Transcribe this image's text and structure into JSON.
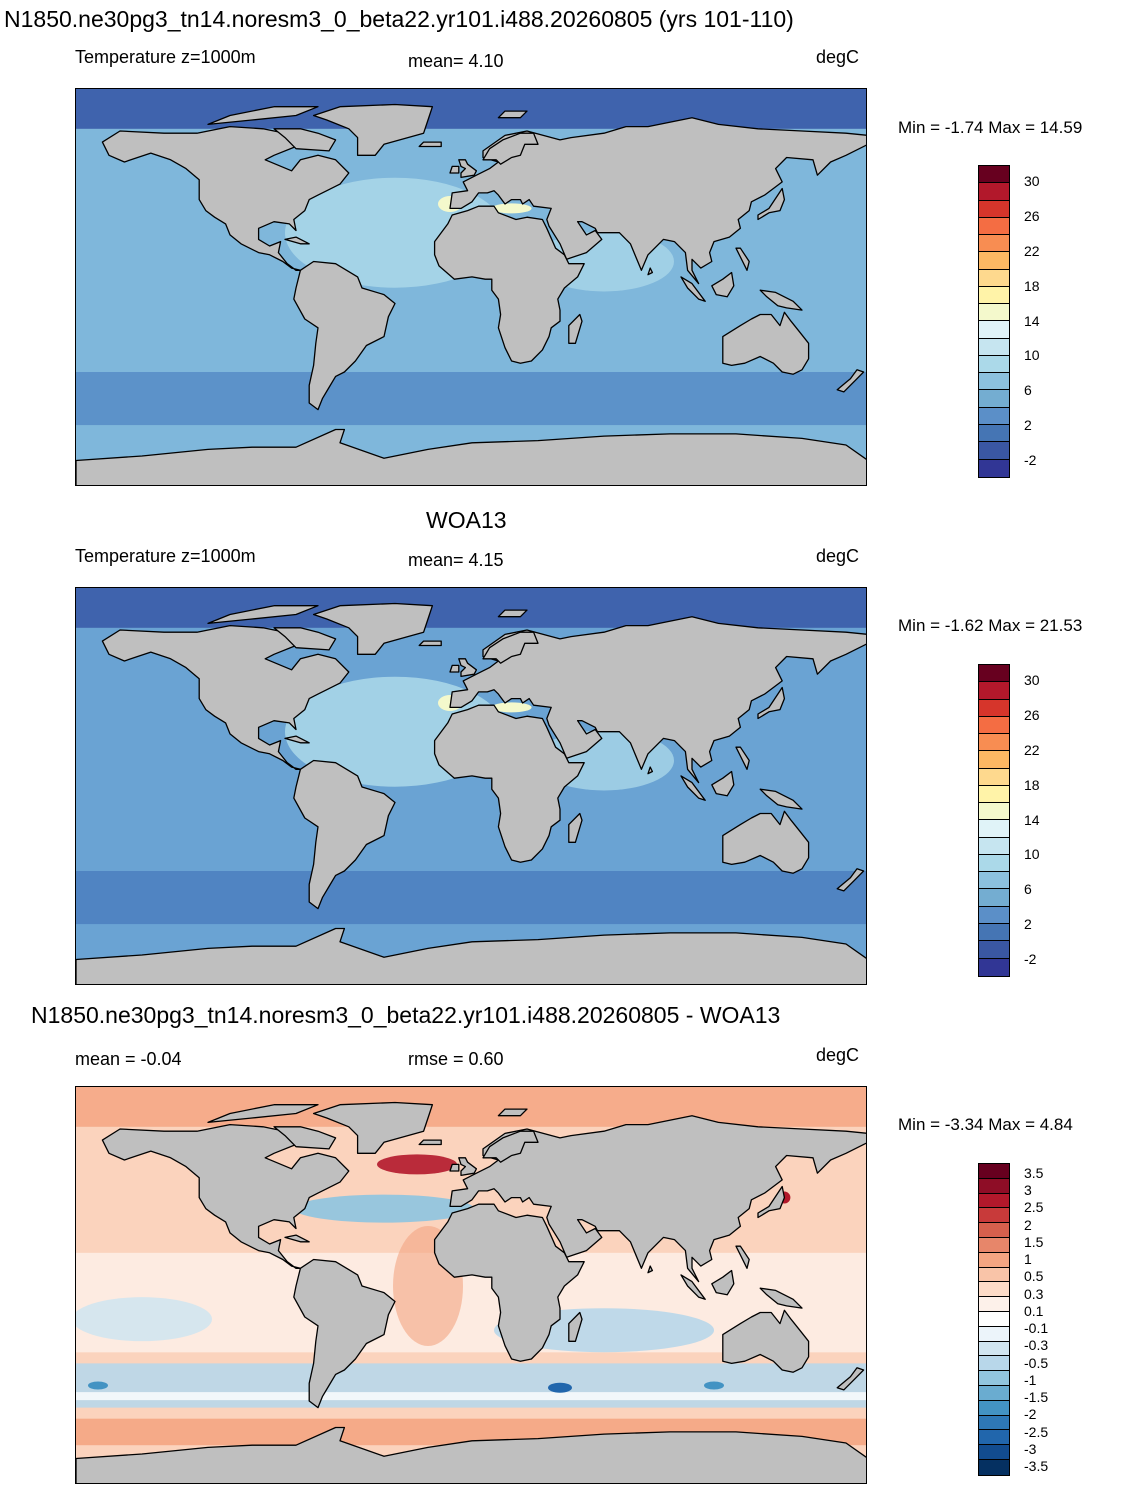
{
  "panels": [
    {
      "title": "N1850.ne30pg3_tn14.noresm3_0_beta22.yr101.i488.20260805 (yrs 101-110)",
      "left_label": "Temperature z=1000m",
      "center_label": "mean=   4.10",
      "units": "degC",
      "minmax": "Min =  -1.74 Max =  14.59",
      "colorbar": {
        "labels": [
          "30",
          "26",
          "22",
          "18",
          "14",
          "10",
          "6",
          "2",
          "-2"
        ],
        "colors": [
          "#67001f",
          "#b2182b",
          "#d6352b",
          "#f46d43",
          "#f88d52",
          "#fdb863",
          "#fed98e",
          "#fff3a8",
          "#f4f9cc",
          "#e0f3f8",
          "#c6e5f0",
          "#abd9e9",
          "#8cc1de",
          "#74add1",
          "#5b8fc8",
          "#4575b4",
          "#3a57a3",
          "#313695"
        ]
      },
      "fields": {
        "ocean_base": "#7fb7db",
        "deep_band": "#5c92c9",
        "shelf": "#3f63ad",
        "warm": "#a9d6e8",
        "hot": "#f4f9cc"
      }
    },
    {
      "title": "WOA13",
      "left_label": "Temperature z=1000m",
      "center_label": "mean=   4.15",
      "units": "degC",
      "minmax": "Min =  -1.62 Max =  21.53",
      "colorbar": {
        "labels": [
          "30",
          "26",
          "22",
          "18",
          "14",
          "10",
          "6",
          "2",
          "-2"
        ],
        "colors": [
          "#67001f",
          "#b2182b",
          "#d6352b",
          "#f46d43",
          "#f88d52",
          "#fdb863",
          "#fed98e",
          "#fff3a8",
          "#f4f9cc",
          "#e0f3f8",
          "#c6e5f0",
          "#abd9e9",
          "#8cc1de",
          "#74add1",
          "#5b8fc8",
          "#4575b4",
          "#3a57a3",
          "#313695"
        ]
      },
      "fields": {
        "ocean_base": "#6aa3d3",
        "deep_band": "#5084c2",
        "shelf": "#3f63ad",
        "warm": "#a9d6e8",
        "hot": "#f4f9cc"
      }
    },
    {
      "title": "N1850.ne30pg3_tn14.noresm3_0_beta22.yr101.i488.20260805 - WOA13",
      "left_label": "mean =  -0.04",
      "center_label": "rmse =   0.60",
      "units": "degC",
      "minmax": "Min =  -3.34 Max =   4.84",
      "colorbar": {
        "labels": [
          "3.5",
          "3",
          "2.5",
          "2",
          "1.5",
          "1",
          "0.5",
          "0.3",
          "0.1",
          "-0.1",
          "-0.3",
          "-0.5",
          "-1",
          "-1.5",
          "-2",
          "-2.5",
          "-3",
          "-3.5"
        ],
        "colors": [
          "#67001f",
          "#8e0d26",
          "#b2182b",
          "#c83a3a",
          "#d6604d",
          "#e7866a",
          "#f4a582",
          "#f9c4a8",
          "#fddbc7",
          "#fdf1ea",
          "#ffffff",
          "#ecf4fa",
          "#d1e5f0",
          "#b8d7ea",
          "#92c5de",
          "#6aacd0",
          "#4393c3",
          "#2e78b6",
          "#2166ac",
          "#124c8f",
          "#053061"
        ]
      },
      "fields": {
        "ocean_base": "#fbd3bd",
        "deep_band": "#b8d7ea",
        "shelf": "#f4a582",
        "warm": "#ffffff",
        "hot": "#b2182b"
      }
    }
  ],
  "land_color": "#bfbfbf"
}
